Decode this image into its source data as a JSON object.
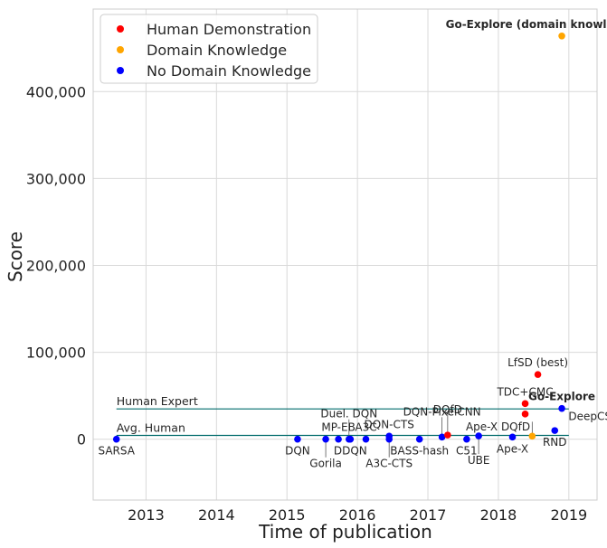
{
  "chart_data": {
    "type": "scatter",
    "xlabel": "Time of publication",
    "ylabel": "Score",
    "xlim": [
      2012.25,
      2019.4
    ],
    "ylim": [
      -70000,
      495000
    ],
    "x_ticks": [
      2013,
      2014,
      2015,
      2016,
      2017,
      2018,
      2019
    ],
    "x_tick_labels": [
      "2013",
      "2014",
      "2015",
      "2016",
      "2017",
      "2018",
      "2019"
    ],
    "y_ticks": [
      0,
      100000,
      200000,
      300000,
      400000
    ],
    "y_tick_labels": [
      "0",
      "100,000",
      "200,000",
      "300,000",
      "400,000"
    ],
    "grid": true,
    "legend_position": "top-left",
    "legend": [
      {
        "label": "Human Demonstration",
        "color": "#ff0000"
      },
      {
        "label": "Domain Knowledge",
        "color": "#ffa500"
      },
      {
        "label": "No Domain Knowledge",
        "color": "#0000ff"
      }
    ],
    "reference_lines": [
      {
        "label": "Human Expert",
        "y": 34900,
        "x_start": 2012.58,
        "x_end": 2019.0,
        "color": "#006b6b"
      },
      {
        "label": "Avg. Human",
        "y": 4400,
        "x_start": 2012.58,
        "x_end": 2019.0,
        "color": "#006b6b"
      }
    ],
    "points": [
      {
        "label": "SARSA",
        "x": 2012.58,
        "y": 0,
        "category": "No Domain Knowledge",
        "color": "#0000ff",
        "label_pos": "below"
      },
      {
        "label": "DQN",
        "x": 2015.15,
        "y": 0,
        "category": "No Domain Knowledge",
        "color": "#0000ff",
        "label_pos": "below"
      },
      {
        "label": "Gorila",
        "x": 2015.55,
        "y": 0,
        "category": "No Domain Knowledge",
        "color": "#0000ff",
        "label_pos": "below-far"
      },
      {
        "label": "MP-EB",
        "x": 2015.73,
        "y": 0,
        "category": "No Domain Knowledge",
        "color": "#0000ff",
        "label_pos": "above"
      },
      {
        "label": "DDQN",
        "x": 2015.9,
        "y": 0,
        "category": "No Domain Knowledge",
        "color": "#0000ff",
        "label_pos": "below"
      },
      {
        "label": "Duel. DQN",
        "x": 2015.88,
        "y": 0,
        "category": "No Domain Knowledge",
        "color": "#0000ff",
        "label_pos": "above-far"
      },
      {
        "label": "A3C",
        "x": 2016.12,
        "y": 0,
        "category": "No Domain Knowledge",
        "color": "#0000ff",
        "label_pos": "above"
      },
      {
        "label": "DQN-CTS",
        "x": 2016.45,
        "y": 3500,
        "category": "No Domain Knowledge",
        "color": "#0000ff",
        "label_pos": "above"
      },
      {
        "label": "A3C-CTS",
        "x": 2016.45,
        "y": 0,
        "category": "No Domain Knowledge",
        "color": "#0000ff",
        "label_pos": "below-far"
      },
      {
        "label": "BASS-hash",
        "x": 2016.88,
        "y": 0,
        "category": "No Domain Knowledge",
        "color": "#0000ff",
        "label_pos": "below"
      },
      {
        "label": "DQN-PixelCNN",
        "x": 2017.2,
        "y": 2500,
        "category": "No Domain Knowledge",
        "color": "#0000ff",
        "label_pos": "above-far"
      },
      {
        "label": "DQfD",
        "x": 2017.28,
        "y": 4800,
        "category": "Human Demonstration",
        "color": "#ff0000",
        "label_pos": "above-far"
      },
      {
        "label": "C51",
        "x": 2017.55,
        "y": 0,
        "category": "No Domain Knowledge",
        "color": "#0000ff",
        "label_pos": "below"
      },
      {
        "label": "UBE",
        "x": 2017.72,
        "y": 3800,
        "category": "No Domain Knowledge",
        "color": "#0000ff",
        "label_pos": "below-far"
      },
      {
        "label": "Ape-X",
        "x": 2018.2,
        "y": 2500,
        "category": "No Domain Knowledge",
        "color": "#0000ff",
        "label_pos": "below"
      },
      {
        "label": "Ape-X DQfD",
        "x": 2018.38,
        "y": 29000,
        "category": "Human Demonstration",
        "color": "#ff0000",
        "label_pos": "left"
      },
      {
        "label": "TDC+CMC",
        "x": 2018.38,
        "y": 41000,
        "category": "Human Demonstration",
        "color": "#ff0000",
        "label_pos": "above"
      },
      {
        "label": "LfSD (best)",
        "x": 2018.56,
        "y": 74500,
        "category": "Human Demonstration",
        "color": "#ff0000",
        "label_pos": "above"
      },
      {
        "label": "DeepCS",
        "x": 2018.48,
        "y": 3500,
        "category": "Domain Knowledge",
        "color": "#ffa500",
        "label_pos": "above-right"
      },
      {
        "label": "RND",
        "x": 2018.8,
        "y": 10000,
        "category": "No Domain Knowledge",
        "color": "#0000ff",
        "label_pos": "below"
      },
      {
        "label": "Go-Explore",
        "x": 2018.9,
        "y": 35400,
        "category": "No Domain Knowledge",
        "color": "#0000ff",
        "label_pos": "above",
        "bold": true
      },
      {
        "label": "Go-Explore (domain knowledge)",
        "x": 2018.9,
        "y": 464000,
        "category": "Domain Knowledge",
        "color": "#ffa500",
        "label_pos": "above-left",
        "bold": true
      }
    ]
  }
}
